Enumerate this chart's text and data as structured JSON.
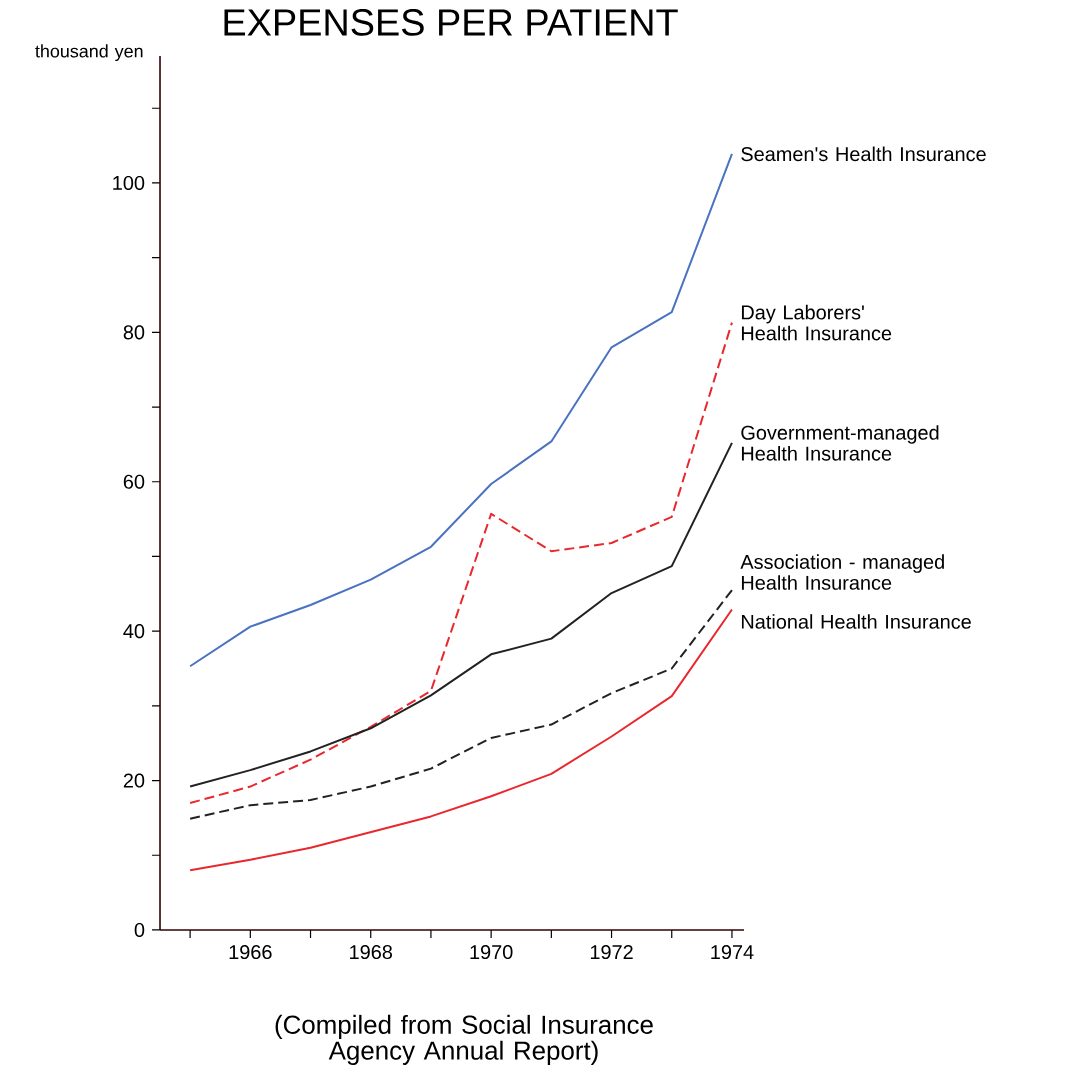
{
  "chart_data": {
    "type": "line",
    "title": "EXPENSES PER PATIENT",
    "ylabel": "thousand yen",
    "x": [
      1965,
      1966,
      1967,
      1968,
      1969,
      1970,
      1971,
      1972,
      1973,
      1974
    ],
    "xlim": [
      1964.5,
      1974.2
    ],
    "xticks": [
      {
        "value": 1965,
        "label": null
      },
      1966,
      {
        "value": 1967,
        "label": null
      },
      1968,
      {
        "value": 1969,
        "label": null
      },
      1970,
      {
        "value": 1971,
        "label": null
      },
      1972,
      {
        "value": 1973,
        "label": null
      },
      1974
    ],
    "ylim": [
      0,
      117
    ],
    "yticks": [
      0,
      {
        "value": 10,
        "label": null
      },
      20,
      {
        "value": 30,
        "label": null
      },
      40,
      {
        "value": 50,
        "label": null
      },
      60,
      {
        "value": 70,
        "label": null
      },
      80,
      {
        "value": 90,
        "label": null
      },
      100,
      {
        "value": 110,
        "label": null
      }
    ],
    "series": [
      {
        "name": "Seamen's Health Insurance",
        "color": "#4a72c0",
        "line_style": "solid",
        "values": [
          35.3,
          40.6,
          43.5,
          46.9,
          51.3,
          59.7,
          65.4,
          78,
          82.7,
          103.9
        ]
      },
      {
        "name": "Day Laborers' Health Insurance",
        "color": "#e8282d",
        "line_style": "dashed",
        "values": [
          17.0,
          19.2,
          22.8,
          27.2,
          32,
          55.7,
          50.7,
          51.8,
          55.3,
          81.3
        ]
      },
      {
        "name": "Government-managed Health Insurance",
        "color": "#222222",
        "line_style": "solid",
        "values": [
          19.2,
          21.4,
          23.9,
          27,
          31.4,
          36.9,
          39,
          45.1,
          48.7,
          65.2
        ]
      },
      {
        "name": "Association - managed Health Insurance",
        "color": "#222222",
        "line_style": "dashed",
        "values": [
          14.9,
          16.7,
          17.4,
          19.2,
          21.6,
          25.7,
          27.5,
          31.7,
          35,
          45.5
        ]
      },
      {
        "name": "National Health Insurance",
        "color": "#e8282d",
        "line_style": "solid",
        "values": [
          8.0,
          9.4,
          11,
          13.1,
          15.2,
          17.9,
          20.9,
          25.9,
          31.3,
          42.9
        ]
      }
    ],
    "annotations": [
      "(Compiled from Social Insurance Agency Annual Report)"
    ]
  }
}
